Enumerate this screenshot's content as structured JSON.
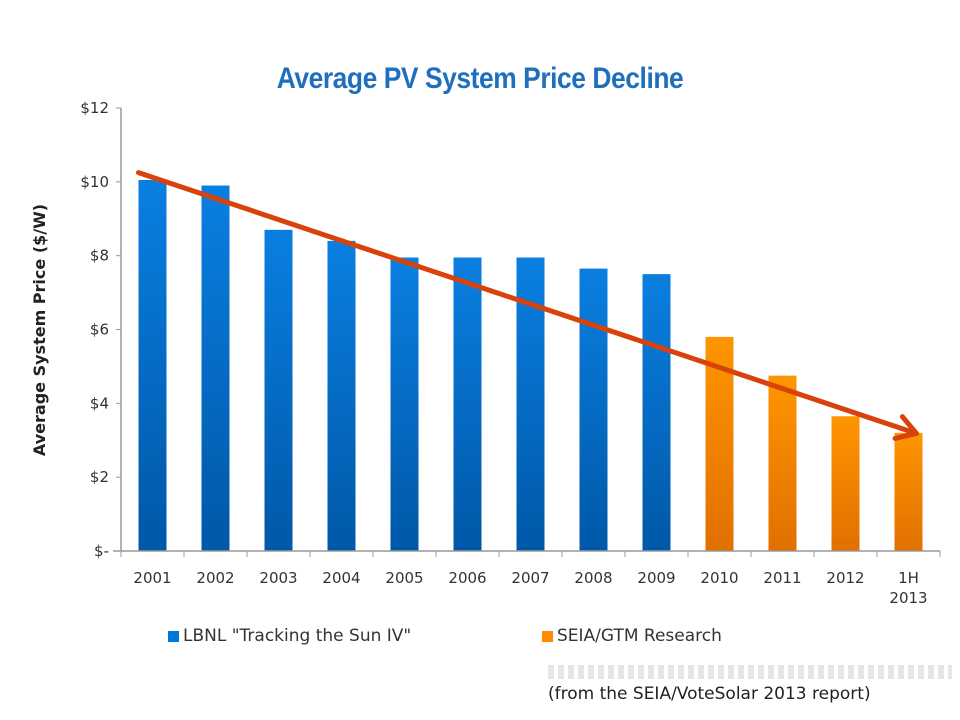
{
  "chart_data": {
    "type": "bar",
    "title": "Average PV System Price Decline",
    "xlabel": "",
    "ylabel": "Average System Price ($/W)",
    "ylim": [
      0,
      12
    ],
    "yticks": [
      {
        "value": 0,
        "label": "$-"
      },
      {
        "value": 2,
        "label": "$2"
      },
      {
        "value": 4,
        "label": "$4"
      },
      {
        "value": 6,
        "label": "$6"
      },
      {
        "value": 8,
        "label": "$8"
      },
      {
        "value": 10,
        "label": "$10"
      },
      {
        "value": 12,
        "label": "$12"
      }
    ],
    "categories": [
      "2001",
      "2002",
      "2003",
      "2004",
      "2005",
      "2006",
      "2007",
      "2008",
      "2009",
      "2010",
      "2011",
      "2012",
      "1H 2013"
    ],
    "series": [
      {
        "name": "LBNL \"Tracking the Sun IV\"",
        "color": "#0078d7",
        "values": [
          10.05,
          9.9,
          8.7,
          8.4,
          7.95,
          7.95,
          7.95,
          7.65,
          7.5,
          null,
          null,
          null,
          null
        ]
      },
      {
        "name": "SEIA/GTM Research",
        "color": "#ff8c00",
        "values": [
          null,
          null,
          null,
          null,
          null,
          null,
          null,
          null,
          null,
          5.8,
          4.75,
          3.65,
          3.2
        ]
      }
    ],
    "trend_arrow": {
      "color": "#d9420b",
      "from": {
        "category": "2001",
        "value": 10.25
      },
      "to": {
        "category": "1H 2013",
        "value": 3.4
      }
    },
    "legend": "bottom",
    "grid": false
  },
  "source_note": "(from the SEIA/VoteSolar 2013 report)"
}
